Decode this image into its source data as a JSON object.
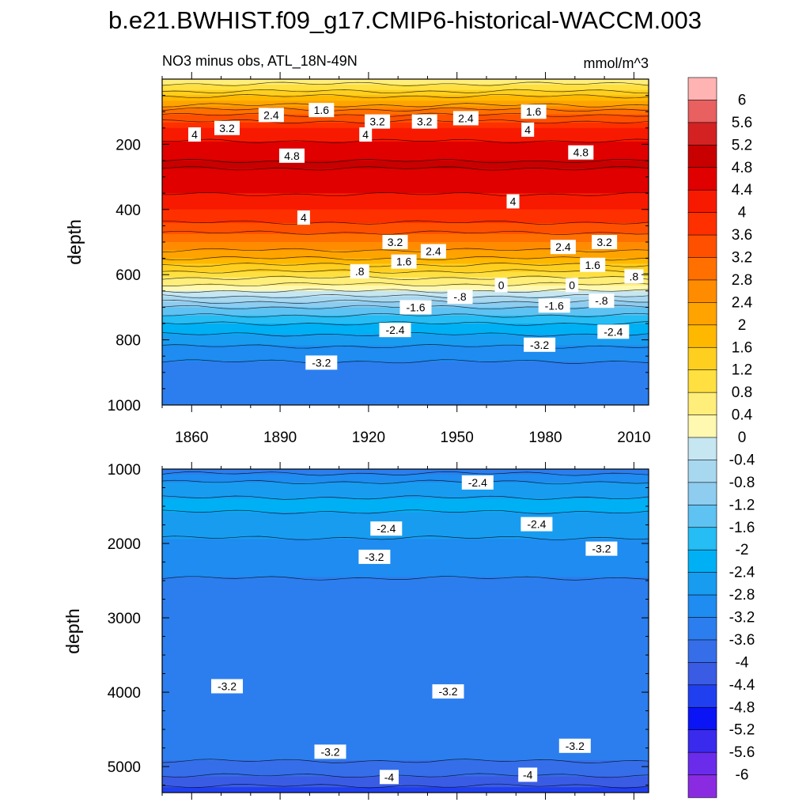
{
  "figure": {
    "title": "b.e21.BWHIST.f09_g17.CMIP6-historical-WACCM.003",
    "left_subtitle": "NO3 minus obs, ATL_18N-49N",
    "right_subtitle": "mmol/m^3"
  },
  "chart_data": [
    {
      "type": "heatmap",
      "panel": "upper",
      "title": "NO3 minus obs, ATL_18N-49N",
      "units": "mmol/m^3",
      "xlabel": "",
      "ylabel": "depth",
      "xlim": [
        1850,
        2015
      ],
      "ylim": [
        1000,
        0
      ],
      "x_ticks": [
        1860,
        1890,
        1920,
        1950,
        1980,
        2010
      ],
      "y_ticks": [
        200,
        400,
        600,
        800,
        1000
      ],
      "depth_profile": [
        {
          "depth": 0,
          "value": 0.6
        },
        {
          "depth": 30,
          "value": 1.0
        },
        {
          "depth": 60,
          "value": 1.8
        },
        {
          "depth": 100,
          "value": 3.0
        },
        {
          "depth": 150,
          "value": 4.0
        },
        {
          "depth": 200,
          "value": 4.5
        },
        {
          "depth": 260,
          "value": 4.85
        },
        {
          "depth": 330,
          "value": 4.6
        },
        {
          "depth": 400,
          "value": 4.0
        },
        {
          "depth": 450,
          "value": 3.5
        },
        {
          "depth": 500,
          "value": 2.8
        },
        {
          "depth": 550,
          "value": 2.0
        },
        {
          "depth": 600,
          "value": 1.0
        },
        {
          "depth": 650,
          "value": 0.0
        },
        {
          "depth": 700,
          "value": -1.2
        },
        {
          "depth": 750,
          "value": -2.0
        },
        {
          "depth": 800,
          "value": -2.6
        },
        {
          "depth": 850,
          "value": -3.1
        },
        {
          "depth": 900,
          "value": -3.4
        },
        {
          "depth": 1000,
          "value": -3.6
        }
      ],
      "contour_labels": [
        {
          "text": "2.4",
          "year": 1887,
          "depth": 110
        },
        {
          "text": "1.6",
          "year": 1904,
          "depth": 95
        },
        {
          "text": "3.2",
          "year": 1872,
          "depth": 150
        },
        {
          "text": "4",
          "year": 1861,
          "depth": 170
        },
        {
          "text": "3.2",
          "year": 1923,
          "depth": 130
        },
        {
          "text": "3.2",
          "year": 1939,
          "depth": 130
        },
        {
          "text": "2.4",
          "year": 1953,
          "depth": 120
        },
        {
          "text": "1.6",
          "year": 1976,
          "depth": 100
        },
        {
          "text": "4",
          "year": 1919,
          "depth": 170
        },
        {
          "text": "4",
          "year": 1974,
          "depth": 155
        },
        {
          "text": "4.8",
          "year": 1894,
          "depth": 235
        },
        {
          "text": "4.8",
          "year": 1992,
          "depth": 225
        },
        {
          "text": "4",
          "year": 1969,
          "depth": 375
        },
        {
          "text": "4",
          "year": 1898,
          "depth": 425
        },
        {
          "text": "3.2",
          "year": 1929,
          "depth": 500
        },
        {
          "text": "2.4",
          "year": 1942,
          "depth": 528
        },
        {
          "text": "2.4",
          "year": 1986,
          "depth": 515
        },
        {
          "text": "3.2",
          "year": 2000,
          "depth": 500
        },
        {
          "text": "1.6",
          "year": 1932,
          "depth": 560
        },
        {
          "text": "1.6",
          "year": 1996,
          "depth": 570
        },
        {
          "text": ".8",
          "year": 1917,
          "depth": 590
        },
        {
          "text": ".8",
          "year": 2010,
          "depth": 605
        },
        {
          "text": "0",
          "year": 1965,
          "depth": 632
        },
        {
          "text": "0",
          "year": 1989,
          "depth": 632
        },
        {
          "text": "-.8",
          "year": 1951,
          "depth": 668
        },
        {
          "text": "-.8",
          "year": 1999,
          "depth": 680
        },
        {
          "text": "-1.6",
          "year": 1936,
          "depth": 700
        },
        {
          "text": "-1.6",
          "year": 1983,
          "depth": 695
        },
        {
          "text": "-2.4",
          "year": 1929,
          "depth": 770
        },
        {
          "text": "-2.4",
          "year": 2003,
          "depth": 775
        },
        {
          "text": "-3.2",
          "year": 1978,
          "depth": 815
        },
        {
          "text": "-3.2",
          "year": 1904,
          "depth": 870
        }
      ]
    },
    {
      "type": "heatmap",
      "panel": "lower",
      "xlabel": "",
      "ylabel": "depth",
      "xlim": [
        1850,
        2015
      ],
      "ylim": [
        5350,
        1000
      ],
      "y_ticks": [
        1000,
        2000,
        3000,
        4000,
        5000
      ],
      "depth_profile": [
        {
          "depth": 1000,
          "value": -3.5
        },
        {
          "depth": 1100,
          "value": -3.0
        },
        {
          "depth": 1250,
          "value": -2.6
        },
        {
          "depth": 1450,
          "value": -2.3
        },
        {
          "depth": 1700,
          "value": -2.5
        },
        {
          "depth": 2000,
          "value": -2.9
        },
        {
          "depth": 2300,
          "value": -3.15
        },
        {
          "depth": 2800,
          "value": -3.3
        },
        {
          "depth": 3500,
          "value": -3.3
        },
        {
          "depth": 4100,
          "value": -3.25
        },
        {
          "depth": 4700,
          "value": -3.3
        },
        {
          "depth": 5000,
          "value": -3.7
        },
        {
          "depth": 5200,
          "value": -4.2
        },
        {
          "depth": 5350,
          "value": -4.7
        }
      ],
      "contour_labels": [
        {
          "text": "-2.4",
          "year": 1957,
          "depth": 1180
        },
        {
          "text": "-2.4",
          "year": 1926,
          "depth": 1800
        },
        {
          "text": "-2.4",
          "year": 1977,
          "depth": 1740
        },
        {
          "text": "-3.2",
          "year": 1922,
          "depth": 2180
        },
        {
          "text": "-3.2",
          "year": 1999,
          "depth": 2070
        },
        {
          "text": "-3.2",
          "year": 1872,
          "depth": 3920
        },
        {
          "text": "-3.2",
          "year": 1947,
          "depth": 3990
        },
        {
          "text": "-3.2",
          "year": 1907,
          "depth": 4800
        },
        {
          "text": "-3.2",
          "year": 1990,
          "depth": 4720
        },
        {
          "text": "-4",
          "year": 1927,
          "depth": 5140
        },
        {
          "text": "-4",
          "year": 1974,
          "depth": 5110
        }
      ]
    }
  ],
  "colorbar": {
    "labels": [
      "6",
      "5.6",
      "5.2",
      "4.8",
      "4.4",
      "4",
      "3.6",
      "3.2",
      "2.8",
      "2.4",
      "2",
      "1.6",
      "1.2",
      "0.8",
      "0.4",
      "0",
      "-0.4",
      "-0.8",
      "-1.2",
      "-1.6",
      "-2",
      "-2.4",
      "-2.8",
      "-3.2",
      "-3.6",
      "-4",
      "-4.4",
      "-4.8",
      "-5.2",
      "-5.6",
      "-6"
    ],
    "colors": [
      "#FFB3B3",
      "#E86060",
      "#D42222",
      "#C80000",
      "#E00000",
      "#F81A00",
      "#FF3000",
      "#FF5000",
      "#FF7000",
      "#FF8C00",
      "#FFA300",
      "#FFB800",
      "#FFCF20",
      "#FFE040",
      "#FFEE7A",
      "#FFF8B0",
      "#C6E6F2",
      "#A8D8F0",
      "#8ECCF0",
      "#5EC2F2",
      "#26BCF4",
      "#00B0F5",
      "#189CF0",
      "#1E8CF0",
      "#2C7EEE",
      "#356EE8",
      "#3A5CE4",
      "#2040F0",
      "#0A14F5",
      "#3A2AEE",
      "#6A2CEA",
      "#8A2BE2"
    ]
  }
}
